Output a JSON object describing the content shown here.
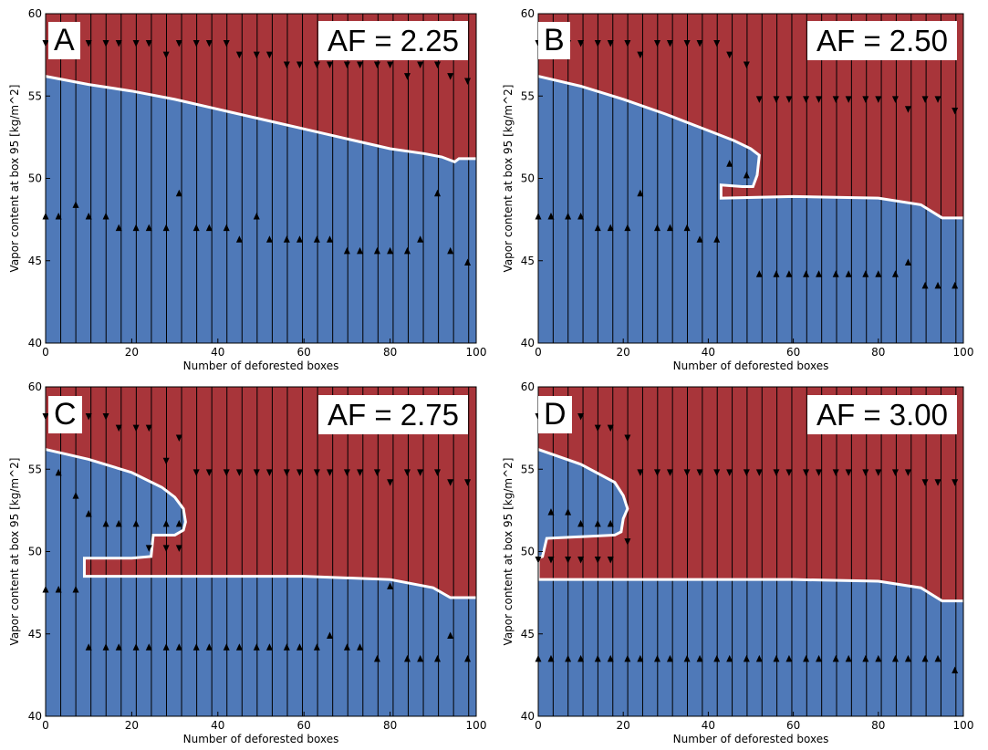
{
  "figure": {
    "panels": [
      {
        "letter": "A",
        "af_label": "AF = 2.25"
      },
      {
        "letter": "B",
        "af_label": "AF = 2.50"
      },
      {
        "letter": "C",
        "af_label": "AF = 2.75"
      },
      {
        "letter": "D",
        "af_label": "AF = 3.00"
      }
    ]
  },
  "chart_data": [
    {
      "type": "area",
      "panel": "A",
      "title": "AF = 2.25",
      "xlabel": "Number of deforested boxes",
      "ylabel": "Vapor content at box 95 [kg/m^2]",
      "xlim": [
        0,
        100
      ],
      "ylim": [
        40,
        60
      ],
      "xticks": [
        "0",
        "20",
        "40",
        "60",
        "80",
        "100"
      ],
      "yticks": [
        "40",
        "45",
        "50",
        "55",
        "60"
      ],
      "colors": {
        "upper_region": "#a8353a",
        "lower_region": "#4f79b8",
        "boundary": "#ffffff"
      },
      "boundary": {
        "x": [
          0,
          10,
          20,
          30,
          40,
          50,
          60,
          70,
          80,
          88,
          92,
          95,
          96,
          100
        ],
        "y": [
          56.2,
          55.7,
          55.3,
          54.8,
          54.2,
          53.6,
          53.0,
          52.4,
          51.8,
          51.5,
          51.3,
          51.0,
          51.2,
          51.2
        ]
      },
      "down_arrows": {
        "x": [
          0,
          10,
          14,
          17,
          21,
          24,
          28,
          31,
          35,
          38,
          42,
          45,
          49,
          52,
          56,
          59,
          63,
          66,
          70,
          73,
          77,
          80,
          84,
          87,
          91,
          94,
          98
        ],
        "y": [
          58.2,
          58.2,
          58.2,
          58.2,
          58.2,
          58.2,
          57.5,
          58.2,
          58.2,
          58.2,
          58.2,
          57.5,
          57.5,
          57.5,
          56.9,
          56.9,
          56.9,
          56.9,
          56.9,
          56.9,
          56.9,
          56.9,
          56.2,
          56.9,
          56.9,
          56.2,
          55.9
        ]
      },
      "up_arrows": {
        "x": [
          0,
          3,
          7,
          10,
          14,
          17,
          21,
          24,
          28,
          31,
          35,
          38,
          42,
          45,
          49,
          52,
          56,
          59,
          63,
          66,
          70,
          73,
          77,
          80,
          84,
          87,
          91,
          94,
          98
        ],
        "y": [
          47.7,
          47.7,
          48.4,
          47.7,
          47.7,
          47.0,
          47.0,
          47.0,
          47.0,
          49.1,
          47.0,
          47.0,
          47.0,
          46.3,
          47.7,
          46.3,
          46.3,
          46.3,
          46.3,
          46.3,
          45.6,
          45.6,
          45.6,
          45.6,
          45.6,
          46.3,
          49.1,
          45.6,
          44.9
        ]
      }
    },
    {
      "type": "area",
      "panel": "B",
      "title": "AF = 2.50",
      "xlabel": "Number of deforested boxes",
      "ylabel": "Vapor content at box 95 [kg/m^2]",
      "xlim": [
        0,
        100
      ],
      "ylim": [
        40,
        60
      ],
      "xticks": [
        "0",
        "20",
        "40",
        "60",
        "80",
        "100"
      ],
      "yticks": [
        "40",
        "45",
        "50",
        "55",
        "60"
      ],
      "colors": {
        "upper_region": "#a8353a",
        "lower_region": "#4f79b8",
        "boundary": "#ffffff"
      },
      "boundary": {
        "x": [
          0,
          10,
          20,
          30,
          40,
          46,
          50,
          52,
          51.5,
          50.5,
          48,
          43,
          43,
          60,
          80,
          90,
          95,
          100
        ],
        "y": [
          56.2,
          55.6,
          54.8,
          53.9,
          52.9,
          52.3,
          51.8,
          51.4,
          50.2,
          49.5,
          49.5,
          49.6,
          48.8,
          48.9,
          48.8,
          48.4,
          47.6,
          47.6
        ]
      },
      "down_arrows": {
        "x": [
          0,
          7,
          10,
          14,
          17,
          21,
          24,
          28,
          31,
          35,
          38,
          42,
          45,
          49,
          52,
          56,
          59,
          63,
          66,
          70,
          73,
          77,
          80,
          84,
          87,
          91,
          94,
          98
        ],
        "y": [
          58.2,
          58.2,
          58.2,
          58.2,
          58.2,
          58.2,
          57.5,
          58.2,
          58.2,
          58.2,
          58.2,
          58.2,
          57.5,
          56.9,
          54.8,
          54.8,
          54.8,
          54.8,
          54.8,
          54.8,
          54.8,
          54.8,
          54.8,
          54.8,
          54.2,
          54.8,
          54.8,
          54.1
        ]
      },
      "up_arrows": {
        "x": [
          0,
          3,
          7,
          10,
          14,
          17,
          21,
          24,
          28,
          31,
          35,
          38,
          42,
          45,
          49,
          52,
          56,
          59,
          63,
          66,
          70,
          73,
          77,
          80,
          84,
          87,
          91,
          94,
          98
        ],
        "y": [
          47.7,
          47.7,
          47.7,
          47.7,
          47.0,
          47.0,
          47.0,
          49.1,
          47.0,
          47.0,
          47.0,
          46.3,
          46.3,
          50.9,
          50.2,
          44.2,
          44.2,
          44.2,
          44.2,
          44.2,
          44.2,
          44.2,
          44.2,
          44.2,
          44.2,
          44.9,
          43.5,
          43.5,
          43.5
        ]
      }
    },
    {
      "type": "area",
      "panel": "C",
      "title": "AF = 2.75",
      "xlabel": "Number of deforested boxes",
      "ylabel": "Vapor content at box 95 [kg/m^2]",
      "xlim": [
        0,
        100
      ],
      "ylim": [
        40,
        60
      ],
      "xticks": [
        "0",
        "20",
        "40",
        "60",
        "80",
        "100"
      ],
      "yticks": [
        "40",
        "45",
        "50",
        "55",
        "60"
      ],
      "colors": {
        "upper_region": "#a8353a",
        "lower_region": "#4f79b8",
        "boundary": "#ffffff"
      },
      "boundary": {
        "x": [
          0,
          10,
          20,
          27,
          30,
          32,
          32.5,
          32,
          30,
          25,
          24.5,
          20,
          9,
          9,
          30,
          60,
          80,
          90,
          94,
          100
        ],
        "y": [
          56.2,
          55.6,
          54.8,
          53.9,
          53.3,
          52.6,
          51.8,
          51.3,
          51.0,
          51.0,
          49.7,
          49.6,
          49.6,
          48.5,
          48.5,
          48.5,
          48.3,
          47.8,
          47.2,
          47.2
        ]
      },
      "down_arrows": {
        "x": [
          0,
          10,
          14,
          17,
          21,
          24,
          28,
          31,
          35,
          38,
          42,
          45,
          49,
          52,
          56,
          59,
          63,
          66,
          70,
          73,
          77,
          80,
          84,
          87,
          91,
          94,
          98
        ],
        "y": [
          58.2,
          58.2,
          58.2,
          57.5,
          57.5,
          57.5,
          55.5,
          56.9,
          54.8,
          54.8,
          54.8,
          54.8,
          54.8,
          54.8,
          54.8,
          54.8,
          54.8,
          54.8,
          54.8,
          54.8,
          54.8,
          54.2,
          54.8,
          54.8,
          54.8,
          54.2,
          54.2
        ]
      },
      "up_arrows": {
        "x": [
          0,
          3,
          7,
          10,
          14,
          17,
          21,
          24,
          28,
          31,
          35,
          38,
          42,
          45,
          49,
          52,
          56,
          59,
          63,
          66,
          70,
          73,
          77,
          80,
          84,
          87,
          91,
          94,
          98
        ],
        "y": [
          47.7,
          47.7,
          47.7,
          44.2,
          44.2,
          44.2,
          44.2,
          44.2,
          44.2,
          44.2,
          44.2,
          44.2,
          44.2,
          44.2,
          44.2,
          44.2,
          44.2,
          44.2,
          44.2,
          44.9,
          44.2,
          44.2,
          43.5,
          47.9,
          43.5,
          43.5,
          43.5,
          44.9,
          43.5
        ]
      },
      "extra_up_arrows": {
        "x": [
          3,
          7,
          10,
          14,
          17,
          21,
          28,
          31
        ],
        "y": [
          54.8,
          53.4,
          52.3,
          51.7,
          51.7,
          51.7,
          51.7,
          51.7
        ]
      },
      "extra_down_arrows": {
        "x": [
          24,
          28,
          31
        ],
        "y": [
          50.2,
          50.2,
          50.2
        ]
      }
    },
    {
      "type": "area",
      "panel": "D",
      "title": "AF = 3.00",
      "xlabel": "Number of deforested boxes",
      "ylabel": "Vapor content at box 95 [kg/m^2]",
      "xlim": [
        0,
        100
      ],
      "ylim": [
        40,
        60
      ],
      "xticks": [
        "0",
        "20",
        "40",
        "60",
        "80",
        "100"
      ],
      "yticks": [
        "40",
        "45",
        "50",
        "55",
        "60"
      ],
      "colors": {
        "upper_region": "#a8353a",
        "lower_region": "#4f79b8",
        "boundary": "#ffffff"
      },
      "boundary": {
        "x": [
          0,
          10,
          18,
          20,
          21,
          20,
          19.5,
          18,
          10,
          2,
          1,
          0,
          0,
          30,
          60,
          80,
          90,
          95,
          100
        ],
        "y": [
          56.2,
          55.3,
          54.2,
          53.4,
          52.6,
          52.0,
          51.2,
          51.0,
          50.9,
          50.8,
          49.7,
          49.6,
          48.3,
          48.3,
          48.3,
          48.2,
          47.8,
          47.0,
          47.0
        ]
      },
      "down_arrows": {
        "x": [
          0,
          3,
          7,
          10,
          14,
          17,
          21,
          24,
          28,
          31,
          35,
          38,
          42,
          45,
          49,
          52,
          56,
          59,
          63,
          66,
          70,
          73,
          77,
          80,
          84,
          87,
          91,
          94,
          98
        ],
        "y": [
          58.2,
          57.5,
          57.5,
          58.2,
          57.5,
          57.5,
          56.9,
          54.8,
          54.8,
          54.8,
          54.8,
          54.8,
          54.8,
          54.8,
          54.8,
          54.8,
          54.8,
          54.8,
          54.8,
          54.8,
          54.8,
          54.8,
          54.8,
          54.8,
          54.8,
          54.8,
          54.2,
          54.2,
          54.2
        ]
      },
      "up_arrows": {
        "x": [
          0,
          3,
          7,
          10,
          14,
          17,
          21,
          24,
          28,
          31,
          35,
          38,
          42,
          45,
          49,
          52,
          56,
          59,
          63,
          66,
          70,
          73,
          77,
          80,
          84,
          87,
          91,
          94,
          98
        ],
        "y": [
          43.5,
          43.5,
          43.5,
          43.5,
          43.5,
          43.5,
          43.5,
          43.5,
          43.5,
          43.5,
          43.5,
          43.5,
          43.5,
          43.5,
          43.5,
          43.5,
          43.5,
          43.5,
          43.5,
          43.5,
          43.5,
          43.5,
          43.5,
          43.5,
          43.5,
          43.5,
          43.5,
          43.5,
          42.8
        ]
      },
      "extra_up_arrows": {
        "x": [
          3,
          7,
          10,
          14,
          17
        ],
        "y": [
          52.4,
          52.4,
          51.7,
          51.7,
          51.7
        ]
      },
      "extra_down_arrows": {
        "x": [
          0,
          3,
          7,
          10,
          14,
          17,
          21
        ],
        "y": [
          49.5,
          49.5,
          49.5,
          49.5,
          49.5,
          49.5,
          50.6
        ]
      }
    }
  ]
}
